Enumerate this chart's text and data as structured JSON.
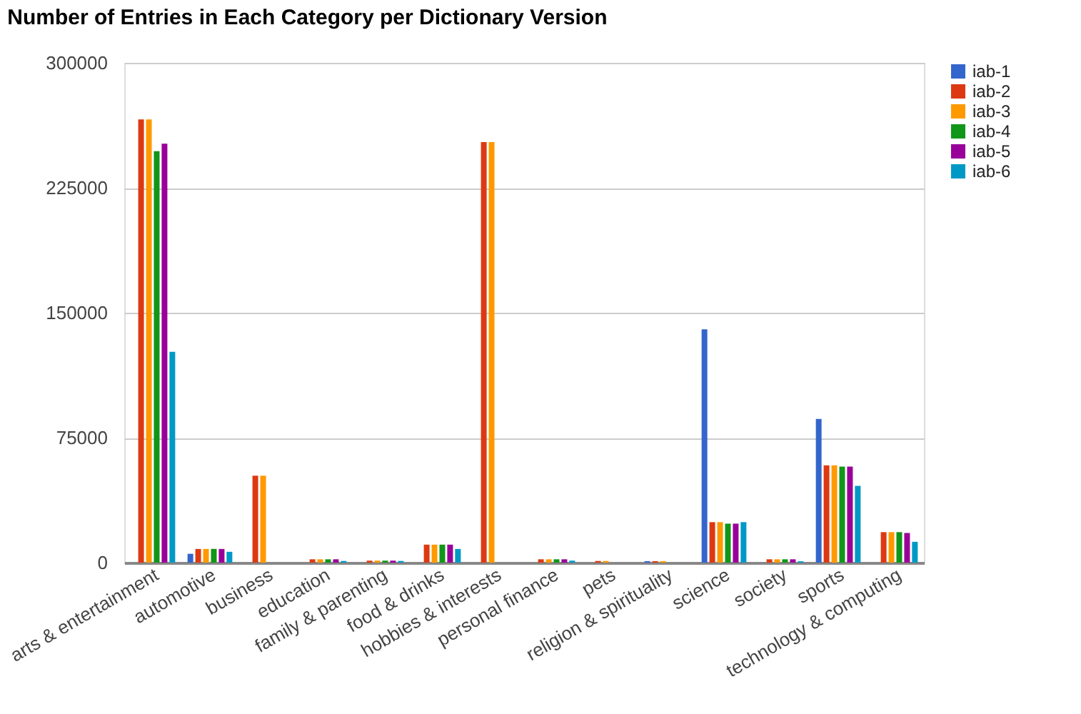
{
  "chart_data": {
    "type": "bar",
    "title": "Number of Entries in Each Category per Dictionary Version",
    "categories": [
      "arts & entertainment",
      "automotive",
      "business",
      "education",
      "family & parenting",
      "food & drinks",
      "hobbies & interests",
      "personal finance",
      "pets",
      "religion & spirituality",
      "science",
      "society",
      "sports",
      "technology & computing"
    ],
    "series": [
      {
        "name": "iab-1",
        "color": "#3366cc",
        "values": [
          null,
          5300,
          null,
          null,
          null,
          null,
          null,
          null,
          null,
          900,
          140000,
          null,
          86300,
          null
        ]
      },
      {
        "name": "iab-2",
        "color": "#dc3912",
        "values": [
          266000,
          8200,
          52200,
          2000,
          1200,
          10800,
          252400,
          2000,
          1000,
          900,
          24300,
          2000,
          58400,
          18300
        ]
      },
      {
        "name": "iab-3",
        "color": "#ff9900",
        "values": [
          266000,
          8200,
          52200,
          2000,
          1200,
          10800,
          252400,
          2000,
          1000,
          900,
          24300,
          2000,
          58400,
          18300
        ]
      },
      {
        "name": "iab-4",
        "color": "#109618",
        "values": [
          247000,
          8200,
          null,
          2000,
          1200,
          10800,
          null,
          2000,
          null,
          null,
          23400,
          2000,
          57600,
          18300
        ]
      },
      {
        "name": "iab-5",
        "color": "#990099",
        "values": [
          251500,
          8200,
          null,
          2000,
          1200,
          10800,
          null,
          2000,
          null,
          null,
          23400,
          2000,
          57600,
          17800
        ]
      },
      {
        "name": "iab-6",
        "color": "#0099c6",
        "values": [
          126500,
          6500,
          null,
          1000,
          1000,
          8200,
          null,
          1200,
          null,
          null,
          24300,
          800,
          46100,
          12500
        ]
      }
    ],
    "ylim": [
      0,
      300000
    ],
    "yticks": [
      0,
      75000,
      150000,
      225000,
      300000
    ],
    "grid": "y",
    "legend": "top right"
  }
}
